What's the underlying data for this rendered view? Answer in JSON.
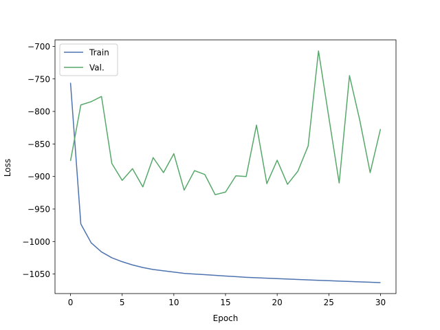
{
  "chart_data": {
    "type": "line",
    "title": "",
    "xlabel": "Epoch",
    "ylabel": "Loss",
    "xlim": [
      -1.5,
      31.5
    ],
    "ylim": [
      -1080,
      -690
    ],
    "xticks": [
      0,
      5,
      10,
      15,
      20,
      25,
      30
    ],
    "yticks": [
      -1050,
      -1000,
      -950,
      -900,
      -850,
      -800,
      -750,
      -700
    ],
    "grid": false,
    "legend_position": "upper-left",
    "x": [
      0,
      1,
      2,
      3,
      4,
      5,
      6,
      7,
      8,
      9,
      10,
      11,
      12,
      13,
      14,
      15,
      16,
      17,
      18,
      19,
      20,
      21,
      22,
      23,
      24,
      25,
      26,
      27,
      28,
      29,
      30
    ],
    "series": [
      {
        "name": "Train",
        "color": "#4c72b0",
        "values": [
          -756,
          -973,
          -1002,
          -1016,
          -1025,
          -1031,
          -1036,
          -1040,
          -1043,
          -1045,
          -1047,
          -1049,
          -1050,
          -1051,
          -1052,
          -1053,
          -1054,
          -1055,
          -1055.7,
          -1056.4,
          -1057,
          -1057.7,
          -1058.4,
          -1059,
          -1059.6,
          -1060.2,
          -1060.8,
          -1061.4,
          -1062,
          -1062.6,
          -1063.2
        ]
      },
      {
        "name": "Val.",
        "color": "#55a868",
        "values": [
          -876,
          -790,
          -785,
          -777,
          -880,
          -906,
          -888,
          -916,
          -871,
          -894,
          -865,
          -921,
          -891,
          -897,
          -928,
          -924,
          -899,
          -900,
          -821,
          -911,
          -875,
          -912,
          -892,
          -853,
          -707,
          -809,
          -910,
          -745,
          -814,
          -894,
          -827
        ]
      }
    ]
  }
}
